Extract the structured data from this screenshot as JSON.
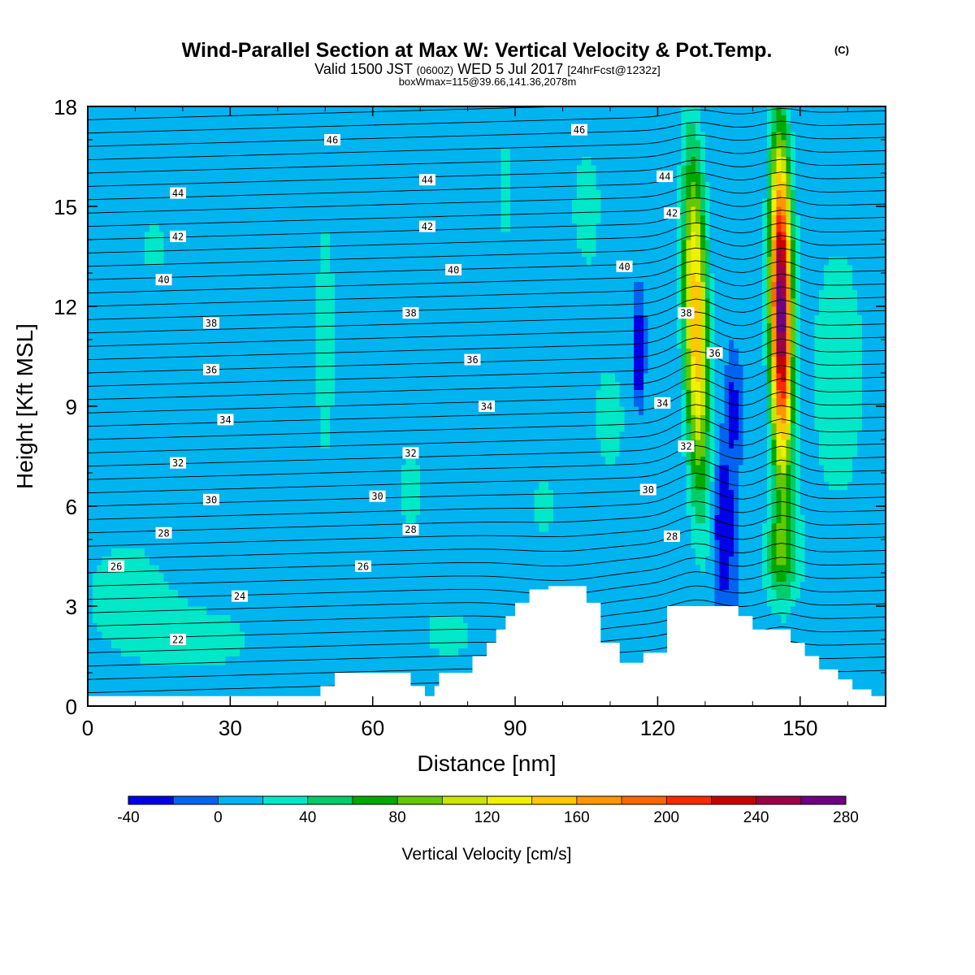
{
  "title": {
    "main": "Wind-Parallel Section at Max W: Vertical Velocity & Pot.Temp.",
    "copyright": "(C)",
    "valid_prefix": "Valid 1500 JST",
    "valid_z": "(0600Z)",
    "valid_date": "WED 5 Jul 2017",
    "forecast": "[24hrFcst@1232z]",
    "boxline": "boxWmax=115@39.66,141.36,2078m"
  },
  "chart_data": {
    "type": "heatmap",
    "xlabel": "Distance [nm]",
    "ylabel": "Height [Kft MSL]",
    "xlim": [
      0,
      168
    ],
    "ylim": [
      0,
      18
    ],
    "xticks": [
      "0",
      "30",
      "60",
      "90",
      "120",
      "150"
    ],
    "yticks": [
      "0",
      "3",
      "6",
      "9",
      "12",
      "15",
      "18"
    ],
    "colorbar": {
      "label": "Vertical Velocity [cm/s]",
      "min": -40,
      "max": 280,
      "step": 20,
      "tick_labels": [
        "-40",
        "0",
        "40",
        "80",
        "120",
        "160",
        "200",
        "240",
        "280"
      ],
      "colors": [
        "#0000e6",
        "#0064f0",
        "#00b4f0",
        "#00e8c8",
        "#00cc6a",
        "#00a800",
        "#64c800",
        "#c8e600",
        "#f0f000",
        "#ffc800",
        "#ff9600",
        "#ff6400",
        "#ff2800",
        "#c80000",
        "#9b0046",
        "#6e0080"
      ]
    },
    "background_velocity_cm_s": 0,
    "updraft_cores": [
      {
        "x_nm": 128,
        "z_kft": [
          7,
          17
        ],
        "max_cm_s": 130
      },
      {
        "x_nm": 146,
        "z_kft": [
          5,
          16
        ],
        "max_cm_s": 260
      }
    ],
    "downdraft_cores": [
      {
        "x_nm": 116,
        "z_kft": [
          9.5,
          11.5
        ],
        "min_cm_s": -30
      },
      {
        "x_nm": 134,
        "z_kft": [
          4,
          9
        ],
        "min_cm_s": -30
      }
    ],
    "terrain_kft": [
      {
        "x": 48,
        "z": 0.3
      },
      {
        "x": 49,
        "z": 0.6
      },
      {
        "x": 52,
        "z": 1.0
      },
      {
        "x": 66,
        "z": 1.0
      },
      {
        "x": 68,
        "z": 0.6
      },
      {
        "x": 71,
        "z": 0.3
      },
      {
        "x": 73,
        "z": 0.6
      },
      {
        "x": 74,
        "z": 1.0
      },
      {
        "x": 79,
        "z": 1.0
      },
      {
        "x": 81,
        "z": 1.5
      },
      {
        "x": 84,
        "z": 1.9
      },
      {
        "x": 86,
        "z": 2.3
      },
      {
        "x": 88,
        "z": 2.7
      },
      {
        "x": 90,
        "z": 3.1
      },
      {
        "x": 93,
        "z": 3.5
      },
      {
        "x": 97,
        "z": 3.6
      },
      {
        "x": 102,
        "z": 3.6
      },
      {
        "x": 105,
        "z": 3.1
      },
      {
        "x": 106,
        "z": 3.1
      },
      {
        "x": 108,
        "z": 1.9
      },
      {
        "x": 112,
        "z": 1.3
      },
      {
        "x": 115,
        "z": 1.3
      },
      {
        "x": 117,
        "z": 1.6
      },
      {
        "x": 122,
        "z": 3.0
      },
      {
        "x": 128,
        "z": 3.0
      },
      {
        "x": 136,
        "z": 3.0
      },
      {
        "x": 137,
        "z": 2.7
      },
      {
        "x": 140,
        "z": 2.3
      },
      {
        "x": 146,
        "z": 2.3
      },
      {
        "x": 148,
        "z": 1.9
      },
      {
        "x": 151,
        "z": 1.5
      },
      {
        "x": 154,
        "z": 1.1
      },
      {
        "x": 158,
        "z": 0.8
      },
      {
        "x": 161,
        "z": 0.5
      },
      {
        "x": 165,
        "z": 0.3
      },
      {
        "x": 168,
        "z": 0.3
      }
    ],
    "isentrope_labels": [
      {
        "text": "46",
        "x": 51.5,
        "z": 17.0
      },
      {
        "text": "46",
        "x": 103.5,
        "z": 17.3
      },
      {
        "text": "44",
        "x": 19,
        "z": 15.4
      },
      {
        "text": "44",
        "x": 71.5,
        "z": 15.8
      },
      {
        "text": "44",
        "x": 121.5,
        "z": 15.9
      },
      {
        "text": "42",
        "x": 19,
        "z": 14.1
      },
      {
        "text": "42",
        "x": 71.5,
        "z": 14.4
      },
      {
        "text": "42",
        "x": 123,
        "z": 14.8
      },
      {
        "text": "40",
        "x": 16,
        "z": 12.8
      },
      {
        "text": "40",
        "x": 77,
        "z": 13.1
      },
      {
        "text": "40",
        "x": 113,
        "z": 13.2
      },
      {
        "text": "38",
        "x": 26,
        "z": 11.5
      },
      {
        "text": "38",
        "x": 68,
        "z": 11.8
      },
      {
        "text": "38",
        "x": 126,
        "z": 11.8
      },
      {
        "text": "36",
        "x": 26,
        "z": 10.1
      },
      {
        "text": "36",
        "x": 81,
        "z": 10.4
      },
      {
        "text": "36",
        "x": 132,
        "z": 10.6
      },
      {
        "text": "34",
        "x": 29,
        "z": 8.6
      },
      {
        "text": "34",
        "x": 84,
        "z": 9.0
      },
      {
        "text": "34",
        "x": 121,
        "z": 9.1
      },
      {
        "text": "32",
        "x": 19,
        "z": 7.3
      },
      {
        "text": "32",
        "x": 68,
        "z": 7.6
      },
      {
        "text": "32",
        "x": 126,
        "z": 7.8
      },
      {
        "text": "30",
        "x": 26,
        "z": 6.2
      },
      {
        "text": "30",
        "x": 61,
        "z": 6.3
      },
      {
        "text": "30",
        "x": 118,
        "z": 6.5
      },
      {
        "text": "28",
        "x": 16,
        "z": 5.2
      },
      {
        "text": "28",
        "x": 68,
        "z": 5.3
      },
      {
        "text": "28",
        "x": 123,
        "z": 5.1
      },
      {
        "text": "26",
        "x": 6,
        "z": 4.2
      },
      {
        "text": "26",
        "x": 58,
        "z": 4.2
      },
      {
        "text": "24",
        "x": 32,
        "z": 3.3
      },
      {
        "text": "22",
        "x": 19,
        "z": 2.0
      }
    ]
  }
}
